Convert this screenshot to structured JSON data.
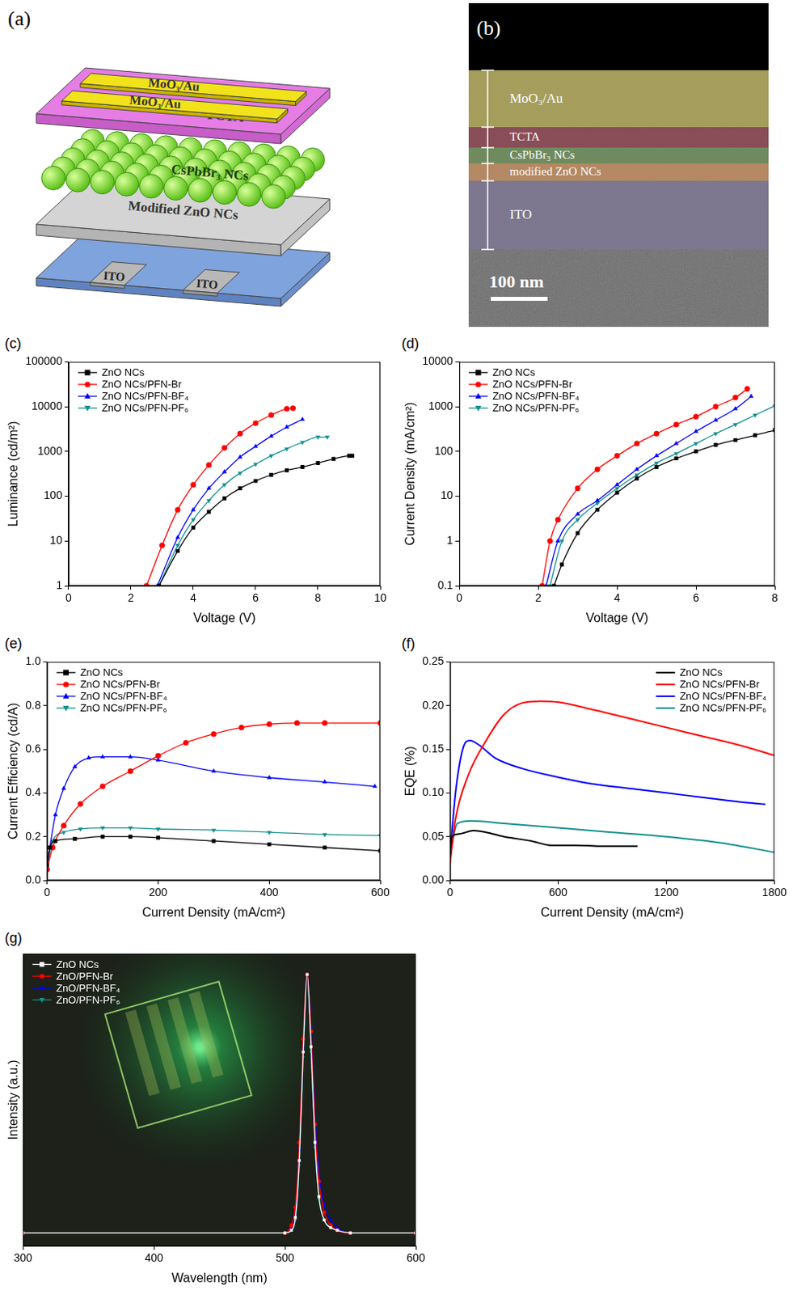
{
  "schematic": {
    "letter": "(a)",
    "electrodes_top": [
      "MoO₃/Au",
      "MoO₃/Au"
    ],
    "layers": [
      "TCTA",
      "CsPbBr₃ NCs",
      "Modified ZnO NCs"
    ],
    "electrodes_bottom": [
      "ITO",
      "ITO"
    ]
  },
  "sem": {
    "letter": "(b)",
    "layers": [
      "MoO₃/Au",
      "TCTA",
      "CsPbBr₃ NCs",
      "modified ZnO NCs",
      "ITO"
    ],
    "scale_bar": "100 nm"
  },
  "chart_data": [
    {
      "letter": "(c)",
      "type": "line",
      "x_label": "Voltage (V)",
      "y_label": "Luminance (cd/m²)",
      "log": "y",
      "grid": false,
      "legend": "upper left",
      "xlim": [
        0,
        10
      ],
      "xticks": [
        0,
        2,
        4,
        6,
        8,
        10
      ],
      "ylim": [
        1,
        100000
      ],
      "yticks": [
        1,
        10,
        100,
        1000,
        10000,
        100000
      ],
      "series": [
        {
          "name": "ZnO NCs",
          "color": "#000000",
          "marker": "square",
          "line_style": "solid",
          "x": [
            2.9,
            3.5,
            4,
            4.5,
            5,
            5.5,
            6,
            6.5,
            7,
            7.5,
            8,
            8.5,
            9,
            9.1
          ],
          "values": [
            1,
            6,
            20,
            45,
            90,
            150,
            220,
            300,
            380,
            450,
            550,
            680,
            800,
            800
          ]
        },
        {
          "name": "ZnO NCs/PFN-Br",
          "color": "#ff0000",
          "marker": "circle",
          "line_style": "solid",
          "x": [
            2.5,
            3,
            3.5,
            4,
            4.5,
            5,
            5.5,
            6,
            6.5,
            7,
            7.2
          ],
          "values": [
            1,
            8,
            50,
            180,
            500,
            1200,
            2500,
            4300,
            6500,
            9000,
            9300
          ]
        },
        {
          "name": "ZnO NCs/PFN-BF₄",
          "color": "#0000ff",
          "marker": "triangle",
          "line_style": "solid",
          "x": [
            2.85,
            3.5,
            4,
            4.5,
            5,
            5.5,
            6,
            6.5,
            7,
            7.5
          ],
          "values": [
            1,
            12,
            50,
            150,
            350,
            750,
            1300,
            2200,
            3500,
            5200
          ]
        },
        {
          "name": "ZnO NCs/PFN-PF₆",
          "color": "#149090",
          "marker": "triangle-down",
          "line_style": "solid",
          "x": [
            2.9,
            3.5,
            4,
            4.5,
            5,
            5.5,
            6,
            6.5,
            7,
            7.5,
            8,
            8.3
          ],
          "values": [
            1,
            8,
            30,
            80,
            180,
            330,
            520,
            800,
            1150,
            1600,
            2100,
            2100
          ]
        }
      ]
    },
    {
      "letter": "(d)",
      "type": "line",
      "x_label": "Voltage (V)",
      "y_label": "Current Density (mA/cm²)",
      "log": "y",
      "grid": false,
      "legend": "upper left",
      "xlim": [
        0,
        8
      ],
      "xticks": [
        0,
        2,
        4,
        6,
        8
      ],
      "ylim": [
        0.1,
        10000
      ],
      "yticks": [
        0.1,
        1,
        10,
        100,
        1000,
        10000
      ],
      "series": [
        {
          "name": "ZnO NCs",
          "color": "#000000",
          "marker": "square",
          "line_style": "solid",
          "x": [
            2.4,
            2.6,
            3,
            3.5,
            4,
            4.5,
            5,
            5.5,
            6,
            6.5,
            7,
            7.5,
            8
          ],
          "values": [
            0.1,
            0.3,
            1.5,
            5,
            12,
            25,
            45,
            70,
            100,
            140,
            180,
            230,
            300
          ]
        },
        {
          "name": "ZnO NCs/PFN-Br",
          "color": "#ff0000",
          "marker": "circle",
          "line_style": "solid",
          "x": [
            2.1,
            2.3,
            2.5,
            3,
            3.5,
            4,
            4.5,
            5,
            5.5,
            6,
            6.5,
            7,
            7.3
          ],
          "values": [
            0.1,
            1,
            3,
            15,
            40,
            80,
            150,
            250,
            400,
            600,
            1000,
            1600,
            2500
          ]
        },
        {
          "name": "ZnO NCs/PFN-BF₄",
          "color": "#0000ff",
          "marker": "triangle",
          "line_style": "solid",
          "x": [
            2.2,
            2.5,
            3,
            3.5,
            4,
            4.5,
            5,
            5.5,
            6,
            6.5,
            7,
            7.4
          ],
          "values": [
            0.1,
            1,
            4,
            8,
            18,
            40,
            80,
            150,
            280,
            500,
            900,
            1700
          ]
        },
        {
          "name": "ZnO NCs/PFN-PF₆",
          "color": "#149090",
          "marker": "triangle-down",
          "line_style": "solid",
          "x": [
            2.3,
            2.6,
            3,
            3.5,
            4,
            4.5,
            5,
            5.5,
            6,
            6.5,
            7,
            7.5,
            8
          ],
          "values": [
            0.1,
            1,
            3,
            7,
            15,
            30,
            55,
            90,
            150,
            250,
            400,
            650,
            1050
          ]
        }
      ]
    },
    {
      "letter": "(e)",
      "type": "line",
      "x_label": "Current Density (mA/cm²)",
      "y_label": "Current Efficiency (cd/A)",
      "grid": false,
      "legend": "upper left",
      "xlim": [
        0,
        600
      ],
      "xticks": [
        0,
        200,
        400,
        600
      ],
      "ylim": [
        0,
        1
      ],
      "yticks": [
        {
          "value": 0,
          "label": "0.0"
        },
        0.2,
        0.4,
        0.6,
        0.8,
        {
          "value": 1,
          "label": "1.0"
        }
      ],
      "series": [
        {
          "name": "ZnO NCs",
          "color": "#000000",
          "marker": "square",
          "line_style": "solid",
          "x": [
            0,
            5,
            15,
            50,
            100,
            150,
            200,
            300,
            400,
            500,
            600
          ],
          "values": [
            0.07,
            0.15,
            0.18,
            0.19,
            0.2,
            0.2,
            0.195,
            0.18,
            0.165,
            0.15,
            0.135
          ]
        },
        {
          "name": "ZnO NCs/PFN-Br",
          "color": "#ff0000",
          "marker": "circle",
          "line_style": "solid",
          "x": [
            0,
            10,
            30,
            60,
            100,
            150,
            200,
            250,
            300,
            350,
            400,
            450,
            500,
            600
          ],
          "values": [
            0.05,
            0.15,
            0.25,
            0.35,
            0.43,
            0.5,
            0.57,
            0.63,
            0.67,
            0.7,
            0.715,
            0.72,
            0.72,
            0.72
          ]
        },
        {
          "name": "ZnO NCs/PFN-BF₄",
          "color": "#0000ff",
          "marker": "triangle",
          "line_style": "solid",
          "x": [
            0,
            5,
            15,
            30,
            50,
            75,
            100,
            150,
            200,
            300,
            400,
            500,
            590
          ],
          "values": [
            0.06,
            0.15,
            0.3,
            0.42,
            0.52,
            0.56,
            0.565,
            0.565,
            0.55,
            0.5,
            0.47,
            0.45,
            0.43
          ]
        },
        {
          "name": "ZnO NCs/PFN-PF₆",
          "color": "#149090",
          "marker": "triangle-down",
          "line_style": "solid",
          "x": [
            0,
            10,
            30,
            60,
            100,
            150,
            200,
            300,
            400,
            500,
            600
          ],
          "values": [
            0.06,
            0.18,
            0.22,
            0.235,
            0.24,
            0.24,
            0.235,
            0.23,
            0.22,
            0.21,
            0.205
          ]
        }
      ]
    },
    {
      "letter": "(f)",
      "type": "line",
      "x_label": "Current Density (mA/cm²)",
      "y_label": "EQE (%)",
      "grid": false,
      "legend": "upper right",
      "xlim": [
        0,
        1800
      ],
      "xticks": [
        0,
        600,
        1200,
        1800
      ],
      "ylim": [
        0,
        0.25
      ],
      "yticks": [
        {
          "value": 0,
          "label": "0.00"
        },
        {
          "value": 0.05,
          "label": "0.05"
        },
        {
          "value": 0.1,
          "label": "0.10"
        },
        {
          "value": 0.15,
          "label": "0.15"
        },
        {
          "value": 0.2,
          "label": "0.20"
        },
        {
          "value": 0.25,
          "label": "0.25"
        }
      ],
      "series": [
        {
          "name": "ZnO NCs",
          "color": "#000000",
          "marker": "none",
          "line_style": "solid",
          "x": [
            0,
            10,
            50,
            130,
            200,
            300,
            450,
            560,
            700,
            850,
            1040
          ],
          "values": [
            0.03,
            0.05,
            0.053,
            0.057,
            0.055,
            0.05,
            0.045,
            0.04,
            0.04,
            0.039,
            0.039
          ]
        },
        {
          "name": "ZnO NCs/PFN-Br",
          "color": "#ff0000",
          "marker": "none",
          "line_style": "solid",
          "x": [
            0,
            30,
            100,
            200,
            300,
            400,
            500,
            600,
            800,
            1000,
            1200,
            1400,
            1600,
            1800
          ],
          "values": [
            0.02,
            0.07,
            0.12,
            0.16,
            0.19,
            0.203,
            0.205,
            0.204,
            0.195,
            0.185,
            0.175,
            0.165,
            0.155,
            0.143
          ]
        },
        {
          "name": "ZnO NCs/PFN-BF₄",
          "color": "#0000ff",
          "marker": "none",
          "line_style": "solid",
          "x": [
            0,
            30,
            70,
            110,
            160,
            250,
            400,
            600,
            800,
            1000,
            1200,
            1400,
            1600,
            1750
          ],
          "values": [
            0.03,
            0.1,
            0.15,
            0.16,
            0.155,
            0.14,
            0.128,
            0.118,
            0.11,
            0.105,
            0.1,
            0.095,
            0.09,
            0.087
          ]
        },
        {
          "name": "ZnO NCs/PFN-PF₆",
          "color": "#149090",
          "marker": "none",
          "line_style": "solid",
          "x": [
            0,
            40,
            120,
            300,
            600,
            900,
            1200,
            1500,
            1800
          ],
          "values": [
            0.03,
            0.065,
            0.068,
            0.065,
            0.06,
            0.055,
            0.05,
            0.043,
            0.032
          ]
        }
      ]
    },
    {
      "letter": "(g)",
      "type": "line",
      "x_label": "Wavelength (nm)",
      "y_label": "Intensity (a.u.)",
      "grid": false,
      "legend": "upper left",
      "tick_labels": "x",
      "xlim": [
        300,
        600
      ],
      "xticks": [
        300,
        400,
        500,
        600
      ],
      "ylim": [
        -0.05,
        1.08
      ],
      "series": [
        {
          "name": "ZnO NCs",
          "color": "#ffffff",
          "marker": "square",
          "line_style": "solid",
          "x": [
            300,
            500,
            505,
            508,
            511,
            514,
            517,
            520,
            523,
            526,
            530,
            535,
            540,
            550,
            600
          ],
          "values": [
            0,
            0,
            0.01,
            0.06,
            0.28,
            0.7,
            1,
            0.72,
            0.35,
            0.14,
            0.05,
            0.02,
            0.01,
            0,
            0
          ]
        },
        {
          "name": "ZnO/PFN-Br",
          "color": "#ff0000",
          "marker": "circle",
          "line_style": "solid",
          "x": [
            300,
            500,
            505,
            508,
            511,
            514,
            517,
            520,
            523,
            526,
            530,
            535,
            540,
            550,
            600
          ],
          "values": [
            0,
            0,
            0.03,
            0.1,
            0.35,
            0.75,
            1,
            0.78,
            0.42,
            0.2,
            0.08,
            0.03,
            0.01,
            0,
            0
          ]
        },
        {
          "name": "ZnO/PFN-BF₄",
          "color": "#0000ff",
          "marker": "triangle",
          "line_style": "solid",
          "x": [
            300,
            500,
            505,
            508,
            511,
            514,
            517,
            520,
            523,
            526,
            530,
            535,
            540,
            550,
            600
          ],
          "values": [
            0,
            0,
            0.02,
            0.08,
            0.32,
            0.72,
            1,
            0.8,
            0.46,
            0.24,
            0.11,
            0.05,
            0.02,
            0,
            0
          ]
        },
        {
          "name": "ZnO/PFN-PF₆",
          "color": "#149090",
          "marker": "triangle-down",
          "line_style": "solid",
          "x": [
            300,
            500,
            505,
            508,
            511,
            514,
            517,
            520,
            523,
            526,
            530,
            535,
            540,
            550,
            600
          ],
          "values": [
            0,
            0,
            0.01,
            0.05,
            0.26,
            0.68,
            1,
            0.7,
            0.33,
            0.13,
            0.05,
            0.02,
            0.01,
            0,
            0
          ]
        }
      ]
    }
  ]
}
